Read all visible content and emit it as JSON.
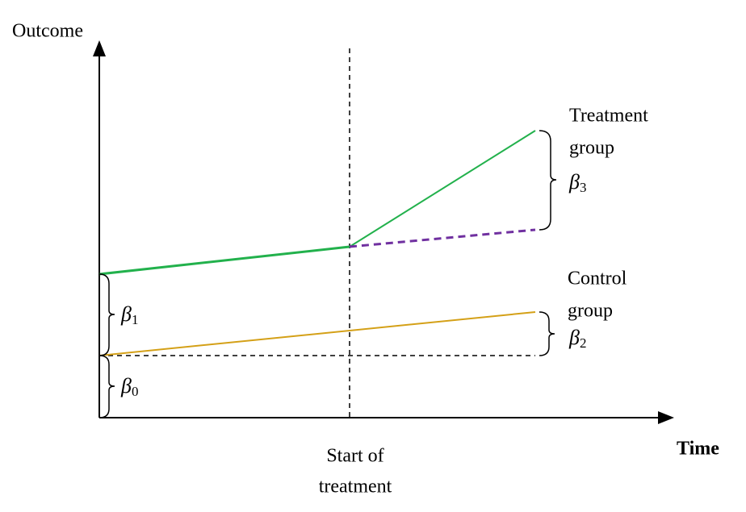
{
  "axes": {
    "y_label": "Outcome",
    "x_label": "Time"
  },
  "event": {
    "label": [
      "Start of",
      "treatment"
    ]
  },
  "groups": [
    {
      "label": [
        "Treatment",
        "group"
      ],
      "color": "#22b14c"
    },
    {
      "label": [
        "Control",
        "group"
      ],
      "color": "#1f77c9"
    }
  ],
  "coefficients": [
    {
      "symbol": "β",
      "subscript": "0"
    },
    {
      "symbol": "β",
      "subscript": "1"
    },
    {
      "symbol": "β",
      "subscript": "2"
    },
    {
      "symbol": "β",
      "subscript": "3"
    }
  ]
}
